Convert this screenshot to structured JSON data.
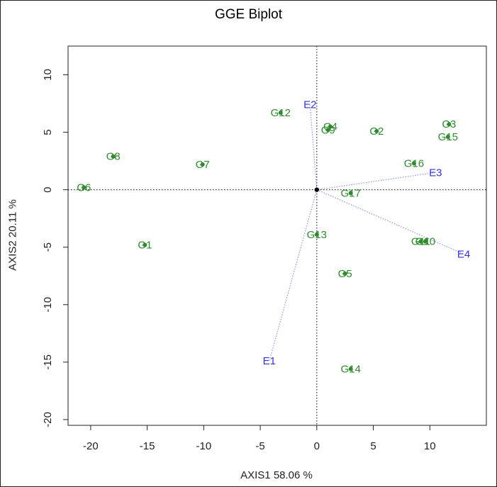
{
  "chart_data": {
    "type": "scatter",
    "title": "GGE Biplot",
    "xlabel": "AXIS1 58.06 %",
    "ylabel": "AXIS2 20.11 %",
    "xlim": [
      -22,
      15
    ],
    "ylim": [
      -20.5,
      12.5
    ],
    "xticks": [
      -20,
      -15,
      -10,
      -5,
      0,
      5,
      10
    ],
    "yticks": [
      -20,
      -15,
      -10,
      -5,
      0,
      5,
      10
    ],
    "genotypes": [
      {
        "label": "G1",
        "x": -15.2,
        "y": -4.8
      },
      {
        "label": "G2",
        "x": 5.3,
        "y": 5.1
      },
      {
        "label": "G3",
        "x": 11.7,
        "y": 5.7
      },
      {
        "label": "G4",
        "x": 1.2,
        "y": 5.5
      },
      {
        "label": "G5",
        "x": 2.5,
        "y": -7.3
      },
      {
        "label": "G6",
        "x": -20.6,
        "y": 0.2
      },
      {
        "label": "G7",
        "x": -10.1,
        "y": 2.2
      },
      {
        "label": "G8",
        "x": -18.0,
        "y": 2.9
      },
      {
        "label": "G9",
        "x": 1.0,
        "y": 5.2
      },
      {
        "label": "G10",
        "x": 9.6,
        "y": -4.5
      },
      {
        "label": "G11",
        "x": 9.2,
        "y": -4.5
      },
      {
        "label": "G12",
        "x": -3.2,
        "y": 6.7
      },
      {
        "label": "G13",
        "x": 0.0,
        "y": -3.9
      },
      {
        "label": "G14",
        "x": 3.0,
        "y": -15.6
      },
      {
        "label": "G15",
        "x": 11.6,
        "y": 4.6
      },
      {
        "label": "G16",
        "x": 8.6,
        "y": 2.3
      },
      {
        "label": "G17",
        "x": 3.0,
        "y": -0.3
      }
    ],
    "environments": [
      {
        "label": "E1",
        "x": -4.2,
        "y": -14.9
      },
      {
        "label": "E2",
        "x": -0.6,
        "y": 7.4
      },
      {
        "label": "E3",
        "x": 10.5,
        "y": 1.5
      },
      {
        "label": "E4",
        "x": 13.0,
        "y": -5.6
      }
    ],
    "colors": {
      "genotype": "#2e8b2e",
      "environment": "#3333dd",
      "vector": "#8899ee",
      "axes": "#222222"
    }
  }
}
